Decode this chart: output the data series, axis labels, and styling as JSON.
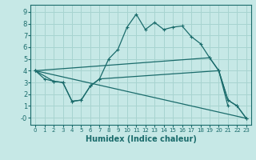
{
  "xlabel": "Humidex (Indice chaleur)",
  "xlim": [
    -0.5,
    23.5
  ],
  "ylim": [
    -0.6,
    9.6
  ],
  "xticks": [
    0,
    1,
    2,
    3,
    4,
    5,
    6,
    7,
    8,
    9,
    10,
    11,
    12,
    13,
    14,
    15,
    16,
    17,
    18,
    19,
    20,
    21,
    22,
    23
  ],
  "yticks": [
    0,
    1,
    2,
    3,
    4,
    5,
    6,
    7,
    8,
    9
  ],
  "ytick_labels": [
    "-0",
    "1",
    "2",
    "3",
    "4",
    "5",
    "6",
    "7",
    "8",
    "9"
  ],
  "bg_color": "#c6e8e6",
  "grid_color": "#a8d4d0",
  "line_color": "#1a6b6b",
  "line1_x": [
    0,
    1,
    2,
    3,
    4,
    5,
    6,
    7,
    8,
    9,
    10,
    11,
    12,
    13,
    14,
    15,
    16,
    17,
    18,
    19,
    20,
    21
  ],
  "line1_y": [
    4.0,
    3.3,
    3.1,
    3.0,
    1.4,
    1.5,
    2.7,
    3.3,
    5.0,
    5.8,
    7.7,
    8.8,
    7.5,
    8.1,
    7.5,
    7.7,
    7.8,
    6.9,
    6.3,
    5.1,
    4.0,
    1.0
  ],
  "line2_x": [
    0,
    19,
    20,
    21,
    22,
    23
  ],
  "line2_y": [
    4.0,
    5.1,
    4.0,
    1.5,
    1.0,
    -0.05
  ],
  "line3_x": [
    0,
    2,
    3,
    4,
    5,
    6,
    7,
    20,
    21,
    22,
    23
  ],
  "line3_y": [
    4.0,
    3.1,
    3.0,
    1.4,
    1.5,
    2.7,
    3.3,
    4.0,
    1.5,
    1.0,
    -0.05
  ],
  "line4_x": [
    0,
    23
  ],
  "line4_y": [
    4.0,
    -0.05
  ]
}
